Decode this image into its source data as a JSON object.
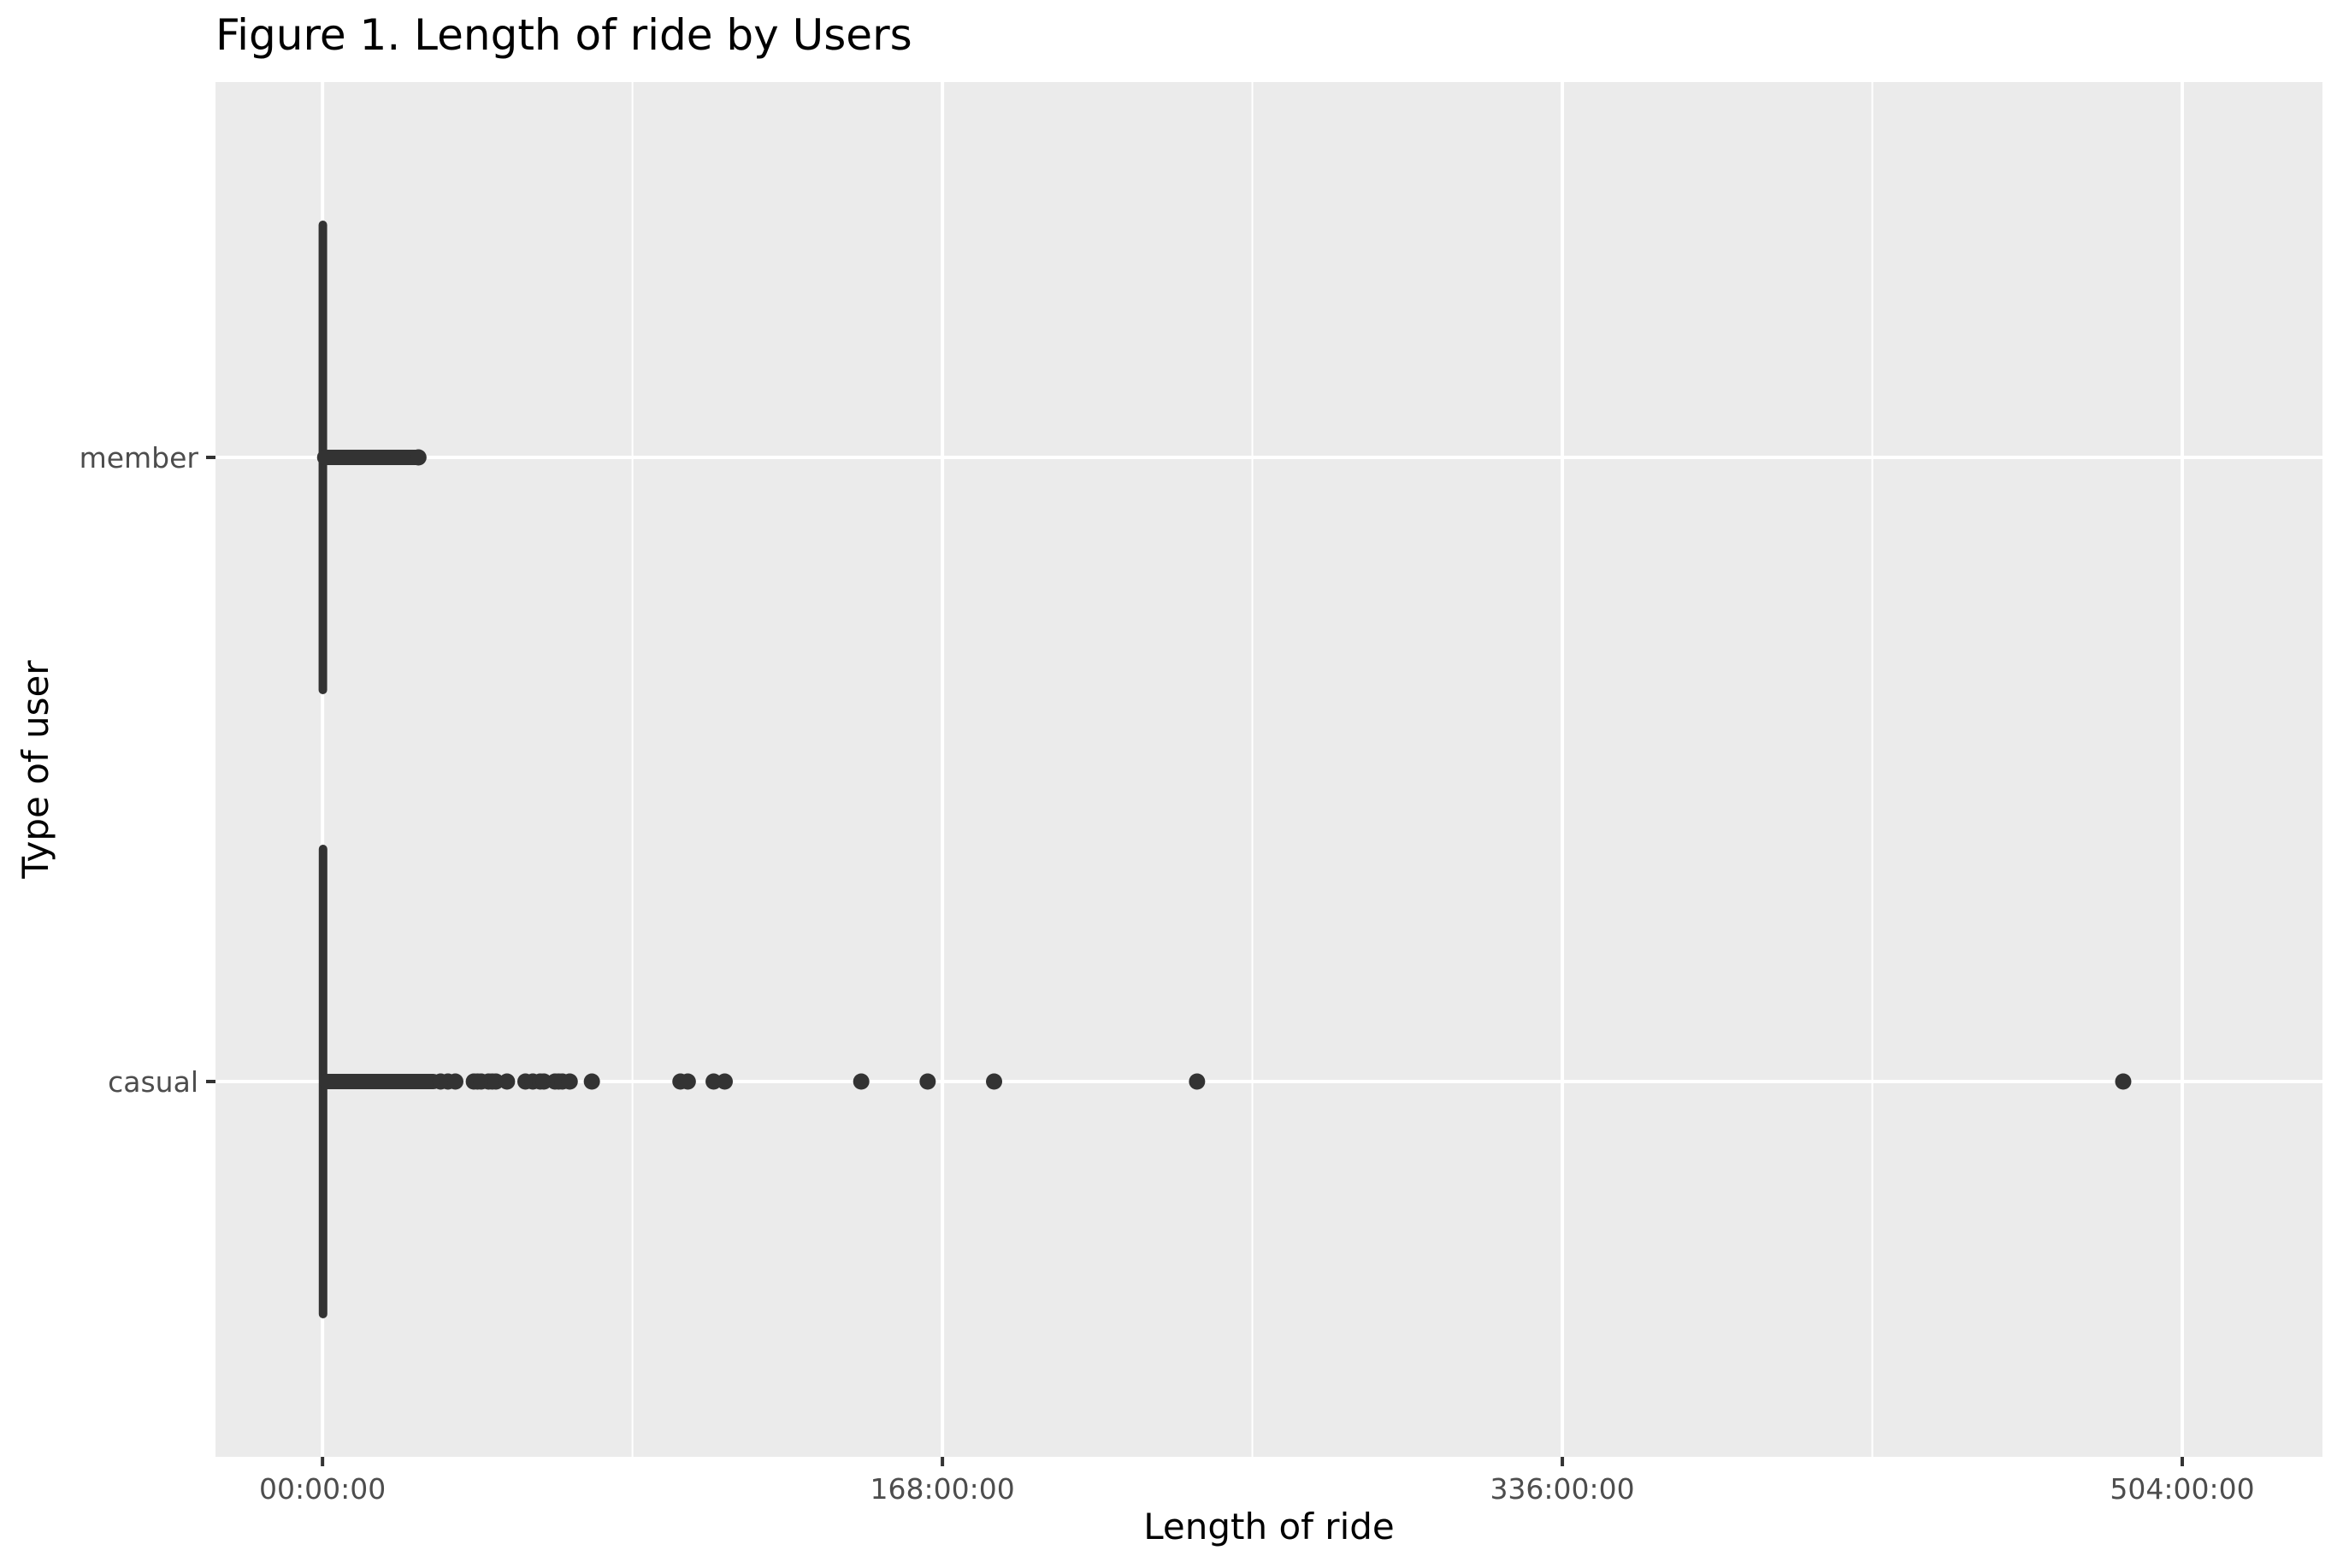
{
  "chart_data": {
    "type": "boxplot",
    "orientation": "horizontal",
    "title": "Figure 1. Length of ride by Users",
    "xlabel": "Length of ride",
    "ylabel": "Type of user",
    "x_unit": "hours",
    "xlim": [
      -29,
      542
    ],
    "x_ticks": [
      {
        "value": 0,
        "label": "00:00:00"
      },
      {
        "value": 168,
        "label": "168:00:00"
      },
      {
        "value": 336,
        "label": "336:00:00"
      },
      {
        "value": 504,
        "label": "504:00:00"
      }
    ],
    "categories": [
      "member",
      "casual"
    ],
    "grid": true,
    "legend": "none",
    "colors": {
      "panel": "#ebebeb",
      "grid": "#ffffff",
      "mark": "#333333",
      "tick_text": "#4d4d4d"
    },
    "series": [
      {
        "category": "member",
        "box": {
          "min": 0,
          "q1": 0.1,
          "median": 0.2,
          "q3": 0.35,
          "max": 0.6
        },
        "outlier_range": [
          0.6,
          26
        ],
        "outliers": [
          26
        ]
      },
      {
        "category": "casual",
        "box": {
          "min": 0,
          "q1": 0.15,
          "median": 0.3,
          "q3": 0.6,
          "max": 1.2
        },
        "outlier_range": [
          1.2,
          30
        ],
        "outliers": [
          32,
          34,
          36,
          41,
          42,
          43,
          45,
          46,
          47,
          50,
          55,
          57,
          59,
          60,
          63,
          64,
          65,
          67,
          73,
          97,
          99,
          106,
          109,
          146,
          164,
          182,
          237,
          488
        ]
      }
    ]
  }
}
